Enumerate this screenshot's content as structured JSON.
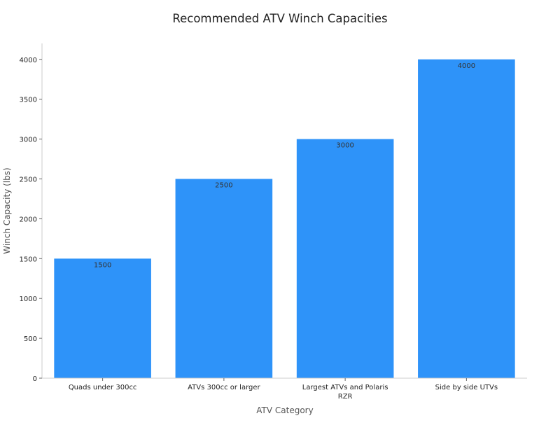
{
  "chart_data": {
    "type": "bar",
    "title": "Recommended ATV Winch Capacities",
    "xlabel": "ATV Category",
    "ylabel": "Winch Capacity (lbs)",
    "categories": [
      [
        "Quads under 300cc"
      ],
      [
        "ATVs 300cc or larger"
      ],
      [
        "Largest ATVs and Polaris",
        "RZR"
      ],
      [
        "Side by side UTVs"
      ]
    ],
    "values": [
      1500,
      2500,
      3000,
      4000
    ],
    "value_labels": [
      "1500",
      "2500",
      "3000",
      "4000"
    ],
    "ylim": [
      0,
      4200
    ],
    "yticks": [
      0,
      500,
      1000,
      1500,
      2000,
      2500,
      3000,
      3500,
      4000
    ],
    "grid": false,
    "legend": "none",
    "colors": {
      "bar": "#2e93f9",
      "axis": "#cccccc",
      "text": "#222222",
      "label_text": "#555555"
    }
  }
}
